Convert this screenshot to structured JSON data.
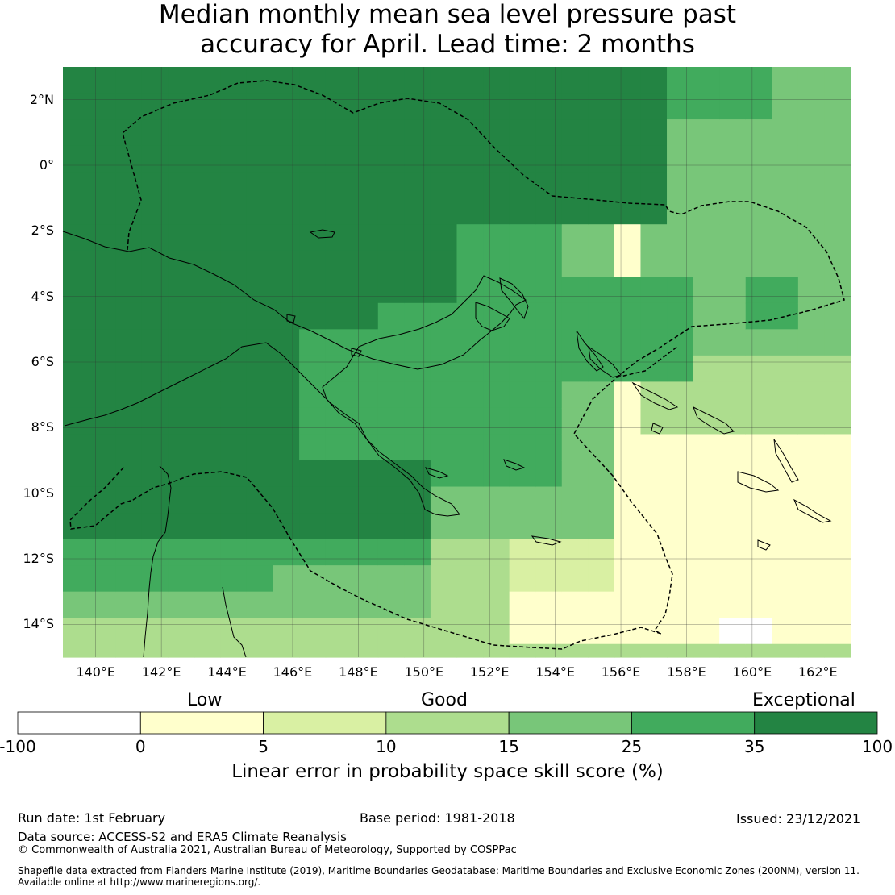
{
  "title": {
    "line1": "Median monthly mean sea level pressure past",
    "line2": "accuracy for April. Lead time: 2 months"
  },
  "map": {
    "lat_labels": [
      "2°N",
      "0°",
      "2°S",
      "4°S",
      "6°S",
      "8°S",
      "10°S",
      "12°S",
      "14°S"
    ],
    "lon_labels": [
      "140°E",
      "142°E",
      "144°E",
      "146°E",
      "148°E",
      "150°E",
      "152°E",
      "154°E",
      "156°E",
      "158°E",
      "160°E",
      "162°E"
    ],
    "lat_values": [
      2,
      0,
      -2,
      -4,
      -6,
      -8,
      -10,
      -12,
      -14
    ],
    "lon_values": [
      140,
      142,
      144,
      146,
      148,
      150,
      152,
      154,
      156,
      158,
      160,
      162
    ],
    "extent": {
      "lon_min": 139,
      "lon_max": 163,
      "lat_min": -15,
      "lat_max": 3
    },
    "line_color": "#000000",
    "grid_color": "#555555"
  },
  "colorbar": {
    "category_labels": [
      "Low",
      "Good",
      "Exceptional"
    ],
    "tick_labels": [
      "-100",
      "0",
      "5",
      "10",
      "15",
      "25",
      "35",
      "100"
    ],
    "bin_colors": [
      "#ffffff",
      "#ffffcc",
      "#d9f0a3",
      "#addd8e",
      "#78c679",
      "#41ab5d",
      "#238443"
    ],
    "title": "Linear error in probability space skill score (%)"
  },
  "footer": {
    "run_date": "Run date: 1st February",
    "base_period": "Base period: 1981-2018",
    "issued": "Issued: 23/12/2021",
    "data_source": "Data source: ACCESS-S2 and ERA5 Climate Reanalysis",
    "copyright": "© Commonwealth of Australia 2021, Australian Bureau of Meteorology, Supported by COSPPac",
    "shapefile_line1": "Shapefile data extracted from Flanders Marine Institute (2019), Maritime Boundaries Geodatabase: Maritime Boundaries and Exclusive Economic Zones (200NM), version 11.",
    "shapefile_line2": "Available online at http://www.marineregions.org/."
  }
}
